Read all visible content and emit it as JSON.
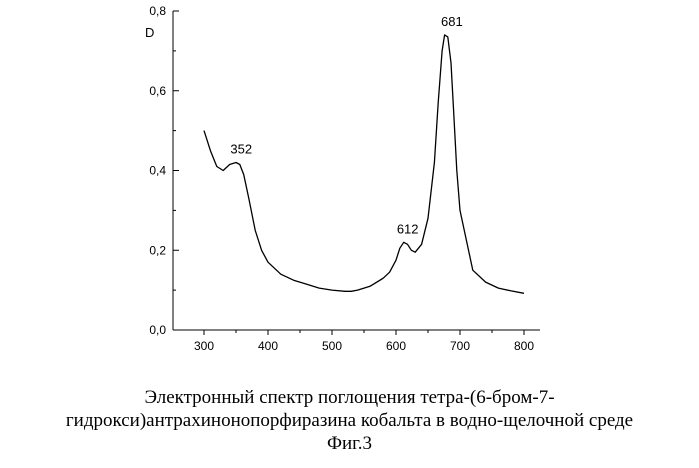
{
  "chart_data": {
    "type": "line",
    "title": "",
    "xlabel": "",
    "ylabel": "D",
    "xlim": [
      300,
      800
    ],
    "ylim": [
      0.0,
      0.8
    ],
    "x_ticks": [
      "300",
      "400",
      "500",
      "600",
      "700",
      "800"
    ],
    "y_ticks": [
      "0,0",
      "0,2",
      "0,4",
      "0,6",
      "0,8"
    ],
    "grid": false,
    "legend": "none",
    "line_color": "#000000",
    "series": [
      {
        "x": [
          300,
          310,
          320,
          330,
          340,
          350,
          356,
          362,
          370,
          380,
          390,
          400,
          420,
          440,
          460,
          480,
          500,
          520,
          530,
          540,
          560,
          580,
          590,
          600,
          606,
          612,
          618,
          624,
          630,
          640,
          650,
          660,
          666,
          672,
          676,
          681,
          686,
          690,
          695,
          700,
          720,
          740,
          760,
          780,
          800
        ],
        "y": [
          0.5,
          0.45,
          0.41,
          0.4,
          0.415,
          0.42,
          0.415,
          0.39,
          0.33,
          0.25,
          0.2,
          0.17,
          0.14,
          0.125,
          0.115,
          0.105,
          0.1,
          0.097,
          0.097,
          0.1,
          0.11,
          0.13,
          0.145,
          0.175,
          0.205,
          0.22,
          0.215,
          0.2,
          0.195,
          0.215,
          0.28,
          0.42,
          0.57,
          0.7,
          0.74,
          0.735,
          0.67,
          0.55,
          0.4,
          0.3,
          0.15,
          0.12,
          0.105,
          0.098,
          0.092
        ]
      }
    ],
    "annotations": [
      {
        "text": "352",
        "x": 352,
        "y": 0.42
      },
      {
        "text": "612",
        "x": 612,
        "y": 0.22
      },
      {
        "text": "681",
        "x": 681,
        "y": 0.74
      }
    ]
  },
  "caption": {
    "line1": "Электронный спектр поглощения тетра-(6-бром-7-",
    "line2": "гидрокси)антрахинонопорфиразина кобальта в водно-щелочной среде",
    "line3": "Фиг.3"
  }
}
